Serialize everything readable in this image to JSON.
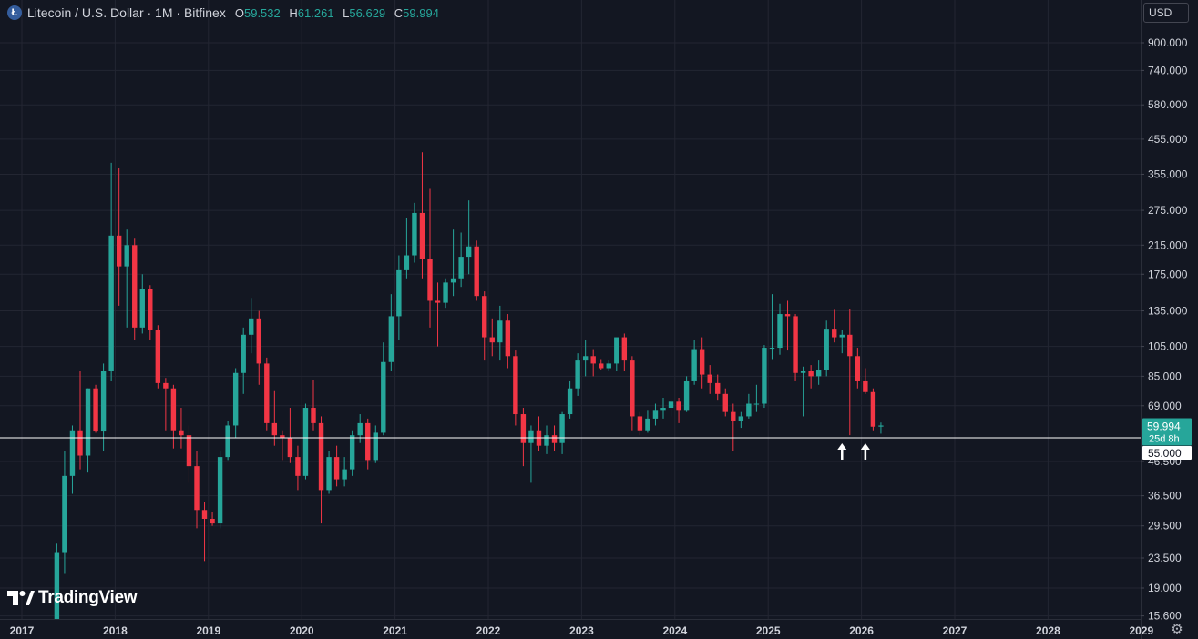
{
  "header": {
    "symbol_title": "Litecoin / U.S. Dollar · 1M · Bitfinex",
    "coin_icon_letter": "Ł",
    "ohlc": [
      {
        "key": "O",
        "value": "59.532"
      },
      {
        "key": "H",
        "value": "61.261"
      },
      {
        "key": "L",
        "value": "56.629"
      },
      {
        "key": "C",
        "value": "59.994"
      }
    ]
  },
  "currency_label": "USD",
  "logo_text": "TradingView",
  "price_axis": {
    "ticks": [
      "900.000",
      "740.000",
      "580.000",
      "455.000",
      "355.000",
      "275.000",
      "215.000",
      "175.000",
      "135.000",
      "105.000",
      "85.000",
      "69.000",
      "46.500",
      "36.500",
      "29.500",
      "23.500",
      "19.000",
      "15.600"
    ]
  },
  "time_axis": {
    "ticks": [
      "2017",
      "2018",
      "2019",
      "2020",
      "2021",
      "2022",
      "2023",
      "2024",
      "2025",
      "2026",
      "2027",
      "2028",
      "2029"
    ]
  },
  "last_price": {
    "value": "59.994",
    "countdown": "25d 8h",
    "color": "#26a69a"
  },
  "level_line": {
    "value": "55.000",
    "color": "#ffffff"
  },
  "colors": {
    "up": "#26a69a",
    "down": "#f23645",
    "background": "#131722",
    "grid": "#232632",
    "text": "#d1d4dc"
  },
  "chart_data": {
    "type": "candlestick",
    "interval": "1M",
    "scale": "log",
    "ylim": [
      15,
      1050
    ],
    "start": "2017-05",
    "candles": [
      [
        15.0,
        26.0,
        12.0,
        24.5
      ],
      [
        24.5,
        50.0,
        21.0,
        42.0
      ],
      [
        42.0,
        60.0,
        37.0,
        58.0
      ],
      [
        58.0,
        88.0,
        44.0,
        48.5
      ],
      [
        48.5,
        78.0,
        43.0,
        78.0
      ],
      [
        78.0,
        80.0,
        57.0,
        57.5
      ],
      [
        57.5,
        93.0,
        50.0,
        88.0
      ],
      [
        88.0,
        385.0,
        82.0,
        230.0
      ],
      [
        230.0,
        370.0,
        140.0,
        185.0
      ],
      [
        185.0,
        240.0,
        120.0,
        215.0
      ],
      [
        215.0,
        225.0,
        110.0,
        120.0
      ],
      [
        120.0,
        175.0,
        115.0,
        158.0
      ],
      [
        158.0,
        162.0,
        110.0,
        118.0
      ],
      [
        118.0,
        122.0,
        78.0,
        81.0
      ],
      [
        81.0,
        84.0,
        58.0,
        78.0
      ],
      [
        78.0,
        80.0,
        51.0,
        58.0
      ],
      [
        58.0,
        68.0,
        51.0,
        56.0
      ],
      [
        56.0,
        60.0,
        40.0,
        45.0
      ],
      [
        45.0,
        50.0,
        29.0,
        33.0
      ],
      [
        33.0,
        35.0,
        23.0,
        31.0
      ],
      [
        31.0,
        32.5,
        29.5,
        30.0
      ],
      [
        30.0,
        50.0,
        29.0,
        48.0
      ],
      [
        48.0,
        62.0,
        47.0,
        60.0
      ],
      [
        60.0,
        90.0,
        55.0,
        87.0
      ],
      [
        87.0,
        120.0,
        75.0,
        114.0
      ],
      [
        114.0,
        148.0,
        100.0,
        128.0
      ],
      [
        128.0,
        135.0,
        80.0,
        93.0
      ],
      [
        93.0,
        97.0,
        58.0,
        61.0
      ],
      [
        61.0,
        77.0,
        52.0,
        56.0
      ],
      [
        56.0,
        58.0,
        47.0,
        55.0
      ],
      [
        55.0,
        68.0,
        46.0,
        48.0
      ],
      [
        48.0,
        52.0,
        38.0,
        42.0
      ],
      [
        42.0,
        70.0,
        41.0,
        68.0
      ],
      [
        68.0,
        83.0,
        58.0,
        61.0
      ],
      [
        61.0,
        64.0,
        30.0,
        38.0
      ],
      [
        38.0,
        50.0,
        37.0,
        48.0
      ],
      [
        48.0,
        52.0,
        39.0,
        41.0
      ],
      [
        41.0,
        48.0,
        39.0,
        44.0
      ],
      [
        44.0,
        58.0,
        42.0,
        56.0
      ],
      [
        56.0,
        65.0,
        53.0,
        61.0
      ],
      [
        61.0,
        63.0,
        44.0,
        47.0
      ],
      [
        47.0,
        60.0,
        46.0,
        57.0
      ],
      [
        57.0,
        108.0,
        56.0,
        94.0
      ],
      [
        94.0,
        152.0,
        88.0,
        130.0
      ],
      [
        130.0,
        200.0,
        110.0,
        180.0
      ],
      [
        180.0,
        260.0,
        170.0,
        200.0
      ],
      [
        200.0,
        290.0,
        190.0,
        270.0
      ],
      [
        270.0,
        415.0,
        170.0,
        195.0
      ],
      [
        195.0,
        320.0,
        120.0,
        145.0
      ],
      [
        145.0,
        165.0,
        105.0,
        143.0
      ],
      [
        143.0,
        170.0,
        138.0,
        165.0
      ],
      [
        165.0,
        240.0,
        150.0,
        170.0
      ],
      [
        170.0,
        235.0,
        160.0,
        198.0
      ],
      [
        198.0,
        295.0,
        175.0,
        213.0
      ],
      [
        213.0,
        222.0,
        145.0,
        150.0
      ],
      [
        150.0,
        155.0,
        95.0,
        112.0
      ],
      [
        112.0,
        128.0,
        98.0,
        108.0
      ],
      [
        108.0,
        140.0,
        95.0,
        126.0
      ],
      [
        126.0,
        132.0,
        90.0,
        98.0
      ],
      [
        98.0,
        102.0,
        60.0,
        65.0
      ],
      [
        65.0,
        68.0,
        45.0,
        53.0
      ],
      [
        53.0,
        60.0,
        40.0,
        58.0
      ],
      [
        58.0,
        64.0,
        50.0,
        52.0
      ],
      [
        52.0,
        60.0,
        49.0,
        56.0
      ],
      [
        56.0,
        60.0,
        50.0,
        53.0
      ],
      [
        53.0,
        66.0,
        49.0,
        65.0
      ],
      [
        65.0,
        82.0,
        63.0,
        78.0
      ],
      [
        78.0,
        100.0,
        74.0,
        95.0
      ],
      [
        95.0,
        110.0,
        85.0,
        98.0
      ],
      [
        98.0,
        103.0,
        85.0,
        93.0
      ],
      [
        93.0,
        96.0,
        89.0,
        90.0
      ],
      [
        90.0,
        95.0,
        88.0,
        93.0
      ],
      [
        93.0,
        108.0,
        88.0,
        112.0
      ],
      [
        112.0,
        115.0,
        88.0,
        95.0
      ],
      [
        95.0,
        98.0,
        58.0,
        64.0
      ],
      [
        64.0,
        66.0,
        56.0,
        58.0
      ],
      [
        58.0,
        67.0,
        57.0,
        63.0
      ],
      [
        63.0,
        70.0,
        60.0,
        67.0
      ],
      [
        67.0,
        73.0,
        63.0,
        68.0
      ],
      [
        68.0,
        72.0,
        64.0,
        71.0
      ],
      [
        71.0,
        73.0,
        61.0,
        67.0
      ],
      [
        67.0,
        85.0,
        66.0,
        82.0
      ],
      [
        82.0,
        110.0,
        80.0,
        103.0
      ],
      [
        103.0,
        112.0,
        78.0,
        86.0
      ],
      [
        86.0,
        92.0,
        75.0,
        81.0
      ],
      [
        81.0,
        86.0,
        72.0,
        75.0
      ],
      [
        75.0,
        78.0,
        64.0,
        66.0
      ],
      [
        66.0,
        70.0,
        50.0,
        62.0
      ],
      [
        62.0,
        66.0,
        59.0,
        64.0
      ],
      [
        64.0,
        75.0,
        63.0,
        70.0
      ],
      [
        70.0,
        80.0,
        66.0,
        70.0
      ],
      [
        70.0,
        106.0,
        68.0,
        104.0
      ],
      [
        104.0,
        152.0,
        96.0,
        104.0
      ],
      [
        104.0,
        142.0,
        99.0,
        132.0
      ],
      [
        132.0,
        145.0,
        102.0,
        130.0
      ],
      [
        130.0,
        132.0,
        82.0,
        87.0
      ],
      [
        87.0,
        91.0,
        64.0,
        88.0
      ],
      [
        88.0,
        92.0,
        78.0,
        85.0
      ],
      [
        85.0,
        95.0,
        80.0,
        89.0
      ],
      [
        89.0,
        126.0,
        85.0,
        119.0
      ],
      [
        119.0,
        136.0,
        108.0,
        112.0
      ],
      [
        112.0,
        118.0,
        100.0,
        114.0
      ],
      [
        114.0,
        137.0,
        56.0,
        98.0
      ],
      [
        98.0,
        104.0,
        78.0,
        82.0
      ],
      [
        82.0,
        90.0,
        75.0,
        76.0
      ],
      [
        76.0,
        78.0,
        58.0,
        59.5
      ],
      [
        59.532,
        61.261,
        56.629,
        59.994
      ]
    ],
    "annotations": [
      {
        "type": "arrow-up",
        "date": "2025-10"
      },
      {
        "type": "arrow-up",
        "date": "2026-01"
      }
    ]
  }
}
